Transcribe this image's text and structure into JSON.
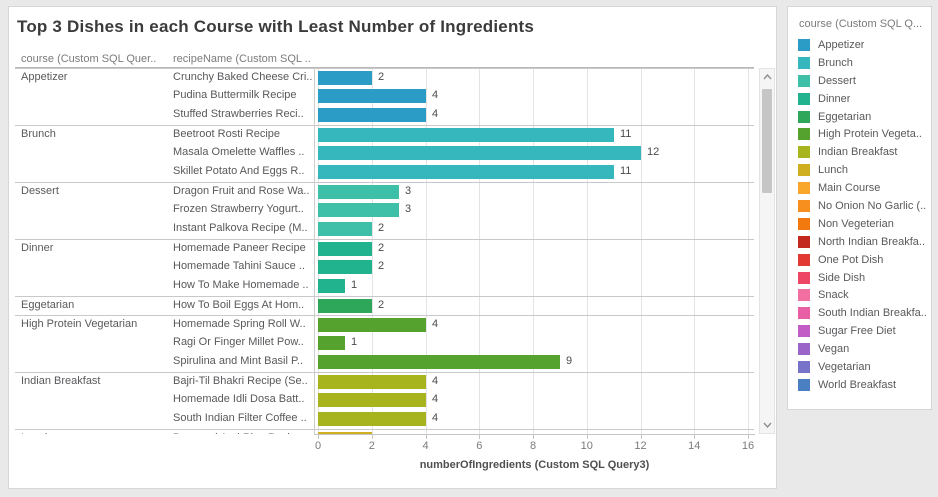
{
  "title": "Top 3 Dishes in each Course with Least Number of Ingredients",
  "table_headers": {
    "course": "course (Custom SQL Quer..",
    "recipe": "recipeName (Custom SQL .."
  },
  "chart_data": {
    "type": "bar",
    "orientation": "horizontal",
    "xlabel": "numberOfIngredients (Custom SQL Query3)",
    "xlim": [
      0,
      16
    ],
    "x_ticks": [
      0,
      2,
      4,
      6,
      8,
      10,
      12,
      14,
      16
    ],
    "grid": true,
    "rows": [
      {
        "course": "Appetizer",
        "recipe": "Crunchy Baked Cheese Cri..",
        "value": 2,
        "color": "#2a9cc5",
        "group_start": true
      },
      {
        "course": "",
        "recipe": "Pudina Buttermilk Recipe",
        "value": 4,
        "color": "#2a9cc5",
        "group_start": false
      },
      {
        "course": "",
        "recipe": "Stuffed Strawberries Reci..",
        "value": 4,
        "color": "#2a9cc5",
        "group_start": false
      },
      {
        "course": "Brunch",
        "recipe": "Beetroot Rosti Recipe",
        "value": 11,
        "color": "#36b6bd",
        "group_start": true
      },
      {
        "course": "",
        "recipe": "Masala Omelette Waffles ..",
        "value": 12,
        "color": "#36b6bd",
        "group_start": false
      },
      {
        "course": "",
        "recipe": "Skillet Potato And Eggs R..",
        "value": 11,
        "color": "#36b6bd",
        "group_start": false
      },
      {
        "course": "Dessert",
        "recipe": "Dragon Fruit and Rose Wa..",
        "value": 3,
        "color": "#3dbfa8",
        "group_start": true
      },
      {
        "course": "",
        "recipe": "Frozen Strawberry Yogurt..",
        "value": 3,
        "color": "#3dbfa8",
        "group_start": false
      },
      {
        "course": "",
        "recipe": "Instant Palkova Recipe (M..",
        "value": 2,
        "color": "#3dbfa8",
        "group_start": false
      },
      {
        "course": "Dinner",
        "recipe": "Homemade Paneer Recipe",
        "value": 2,
        "color": "#21b28e",
        "group_start": true
      },
      {
        "course": "",
        "recipe": "Homemade Tahini Sauce ..",
        "value": 2,
        "color": "#21b28e",
        "group_start": false
      },
      {
        "course": "",
        "recipe": "How To Make Homemade ..",
        "value": 1,
        "color": "#21b28e",
        "group_start": false
      },
      {
        "course": "Eggetarian",
        "recipe": "How To Boil Eggs At Hom..",
        "value": 2,
        "color": "#2fa75a",
        "group_start": true
      },
      {
        "course": "High Protein Vegetarian",
        "recipe": "Homemade Spring Roll W..",
        "value": 4,
        "color": "#56a22f",
        "group_start": true
      },
      {
        "course": "",
        "recipe": "Ragi Or Finger Millet Pow..",
        "value": 1,
        "color": "#56a22f",
        "group_start": false
      },
      {
        "course": "",
        "recipe": "Spirulina and Mint Basil P..",
        "value": 9,
        "color": "#56a22f",
        "group_start": false
      },
      {
        "course": "Indian Breakfast",
        "recipe": "Bajri-Til Bhakri Recipe (Se..",
        "value": 4,
        "color": "#a7b41e",
        "group_start": true
      },
      {
        "course": "",
        "recipe": "Homemade Idli Dosa Batt..",
        "value": 4,
        "color": "#a7b41e",
        "group_start": false
      },
      {
        "course": "",
        "recipe": "South Indian Filter Coffee ..",
        "value": 4,
        "color": "#a7b41e",
        "group_start": false
      },
      {
        "course": "Lunch",
        "recipe": "Barnyard And Rice Recip..",
        "value": 2,
        "color": "#cfae1f",
        "group_start": true,
        "clipped": true
      }
    ]
  },
  "legend": {
    "title": "course (Custom SQL Q...",
    "items": [
      {
        "label": "Appetizer",
        "color": "#2a9cc5"
      },
      {
        "label": "Brunch",
        "color": "#36b6bd"
      },
      {
        "label": "Dessert",
        "color": "#3dbfa8"
      },
      {
        "label": "Dinner",
        "color": "#21b28e"
      },
      {
        "label": "Eggetarian",
        "color": "#2fa75a"
      },
      {
        "label": "High Protein Vegeta..",
        "color": "#56a22f"
      },
      {
        "label": "Indian Breakfast",
        "color": "#a7b41e"
      },
      {
        "label": "Lunch",
        "color": "#cfae1f"
      },
      {
        "label": "Main Course",
        "color": "#f9a72b"
      },
      {
        "label": "No Onion No Garlic (..",
        "color": "#f78f1e"
      },
      {
        "label": "Non Vegeterian",
        "color": "#f1790e"
      },
      {
        "label": "North Indian Breakfa..",
        "color": "#c4291f"
      },
      {
        "label": "One Pot Dish",
        "color": "#e23a32"
      },
      {
        "label": "Side Dish",
        "color": "#ee4766"
      },
      {
        "label": "Snack",
        "color": "#f170a1"
      },
      {
        "label": "South Indian Breakfa..",
        "color": "#e95fa6"
      },
      {
        "label": "Sugar Free Diet",
        "color": "#c15dc4"
      },
      {
        "label": "Vegan",
        "color": "#9b64c9"
      },
      {
        "label": "Vegetarian",
        "color": "#7673c9"
      },
      {
        "label": "World Breakfast",
        "color": "#4a80c2"
      }
    ]
  },
  "scrollbar": {
    "up_icon": "chevron-up",
    "down_icon": "chevron-down"
  }
}
